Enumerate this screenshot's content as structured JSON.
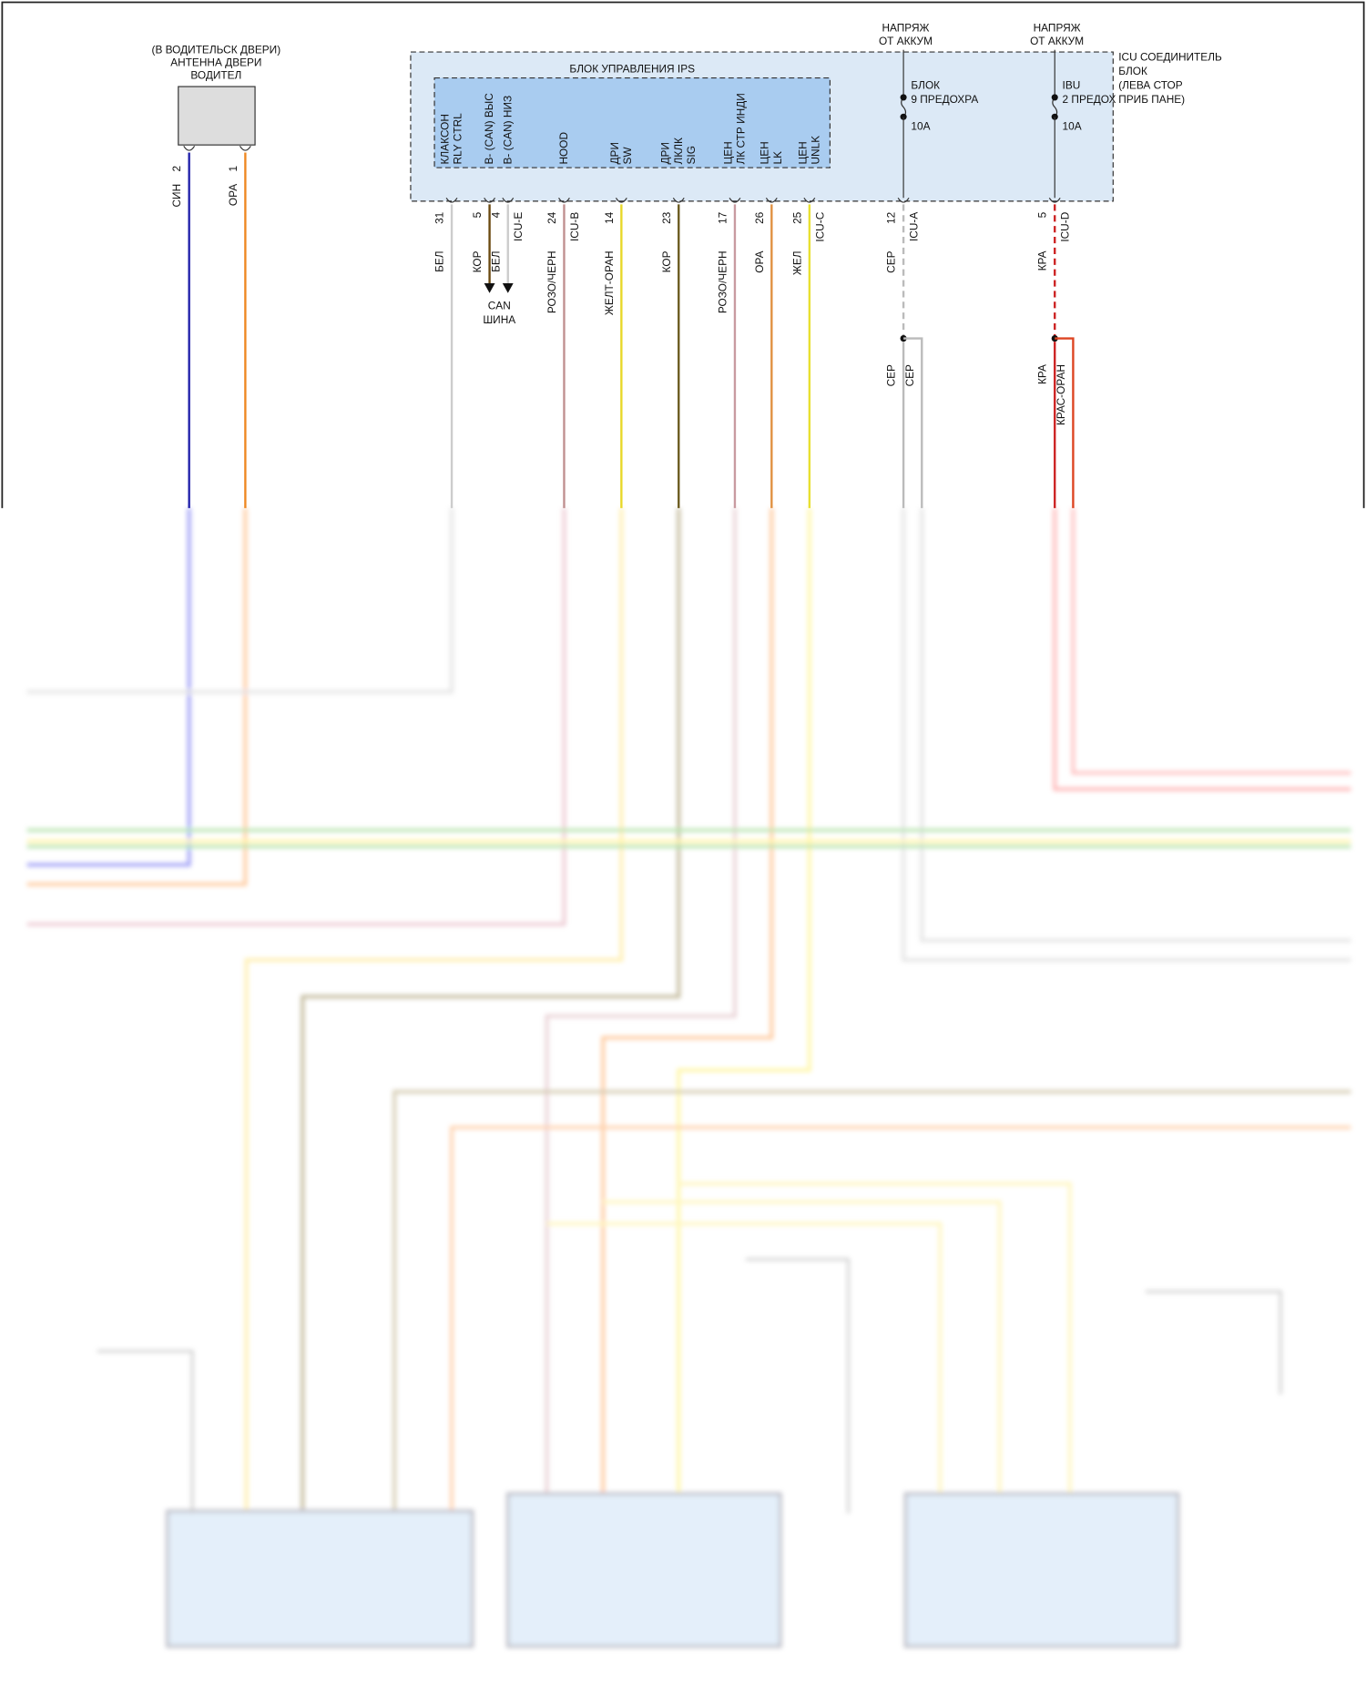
{
  "antenna": {
    "title": [
      "(В ВОДИТЕЛЬСК ДВЕРИ)",
      "АНТЕННА ДВЕРИ",
      "ВОДИТЕЛ"
    ],
    "pins": [
      {
        "number": "2",
        "wire": "СИН"
      },
      {
        "number": "1",
        "wire": "ОРА"
      }
    ]
  },
  "supplies": [
    {
      "lines": [
        "НАПРЯЖ",
        "ОТ АККУМ"
      ],
      "fuse": [
        "БЛОК",
        "9 ПРЕДОХРА"
      ],
      "rating": "10A"
    },
    {
      "lines": [
        "НАПРЯЖ",
        "ОТ АККУМ"
      ],
      "fuse": [
        "IBU",
        "2 ПРЕДОХ"
      ],
      "rating": "10A"
    }
  ],
  "icu_block": [
    "ICU СОЕДИНИТЕЛЬ",
    "БЛОК",
    "(ЛЕВА СТОР",
    "ПРИБ ПАНЕ)"
  ],
  "ips": {
    "title": "БЛОК УПРАВЛЕНИЯ IPS",
    "pins": [
      {
        "label": [
          "КЛАКСОН",
          "RLY CTRL"
        ],
        "number": "31",
        "wire": "БЕЛ"
      },
      {
        "label": [
          "B- (CAN) ВЫС"
        ],
        "number": "5",
        "wire": "КОР"
      },
      {
        "label": [
          "B- (CAN) НИЗ"
        ],
        "number": "4",
        "wire": "БЕЛ",
        "connector": "ICU-E"
      },
      {
        "label": [
          "HOOD"
        ],
        "number": "24",
        "wire": "РОЗО/ЧЕРН",
        "connector": "ICU-B"
      },
      {
        "label": [
          "ДРИ",
          "SW"
        ],
        "number": "14",
        "wire": "ЖЕЛТ-ОРАН"
      },
      {
        "label": [
          "ДРИ",
          "ЛКЛК",
          "SIG"
        ],
        "number": "23",
        "wire": "КОР"
      },
      {
        "label": [
          "ЦЕН",
          "ЛК СТР ИНДИ"
        ],
        "number": "17",
        "wire": "РОЗО/ЧЕРН"
      },
      {
        "label": [
          "ЦЕН",
          "LK"
        ],
        "number": "26",
        "wire": "ОРА"
      },
      {
        "label": [
          "ЦЕН",
          "UNLK"
        ],
        "number": "25",
        "wire": "ЖЕЛ",
        "connector": "ICU-C"
      }
    ]
  },
  "can_bus": [
    "CAN",
    "ШИНА"
  ],
  "icu_pins": [
    {
      "number": "12",
      "connector": "ICU-A",
      "wire": "СЕР",
      "branches": [
        "СЕР",
        "СЕР"
      ]
    },
    {
      "number": "5",
      "connector": "ICU-D",
      "wire": "КРА",
      "branches": [
        "КРА",
        "КРАС-ОРАН"
      ]
    }
  ]
}
